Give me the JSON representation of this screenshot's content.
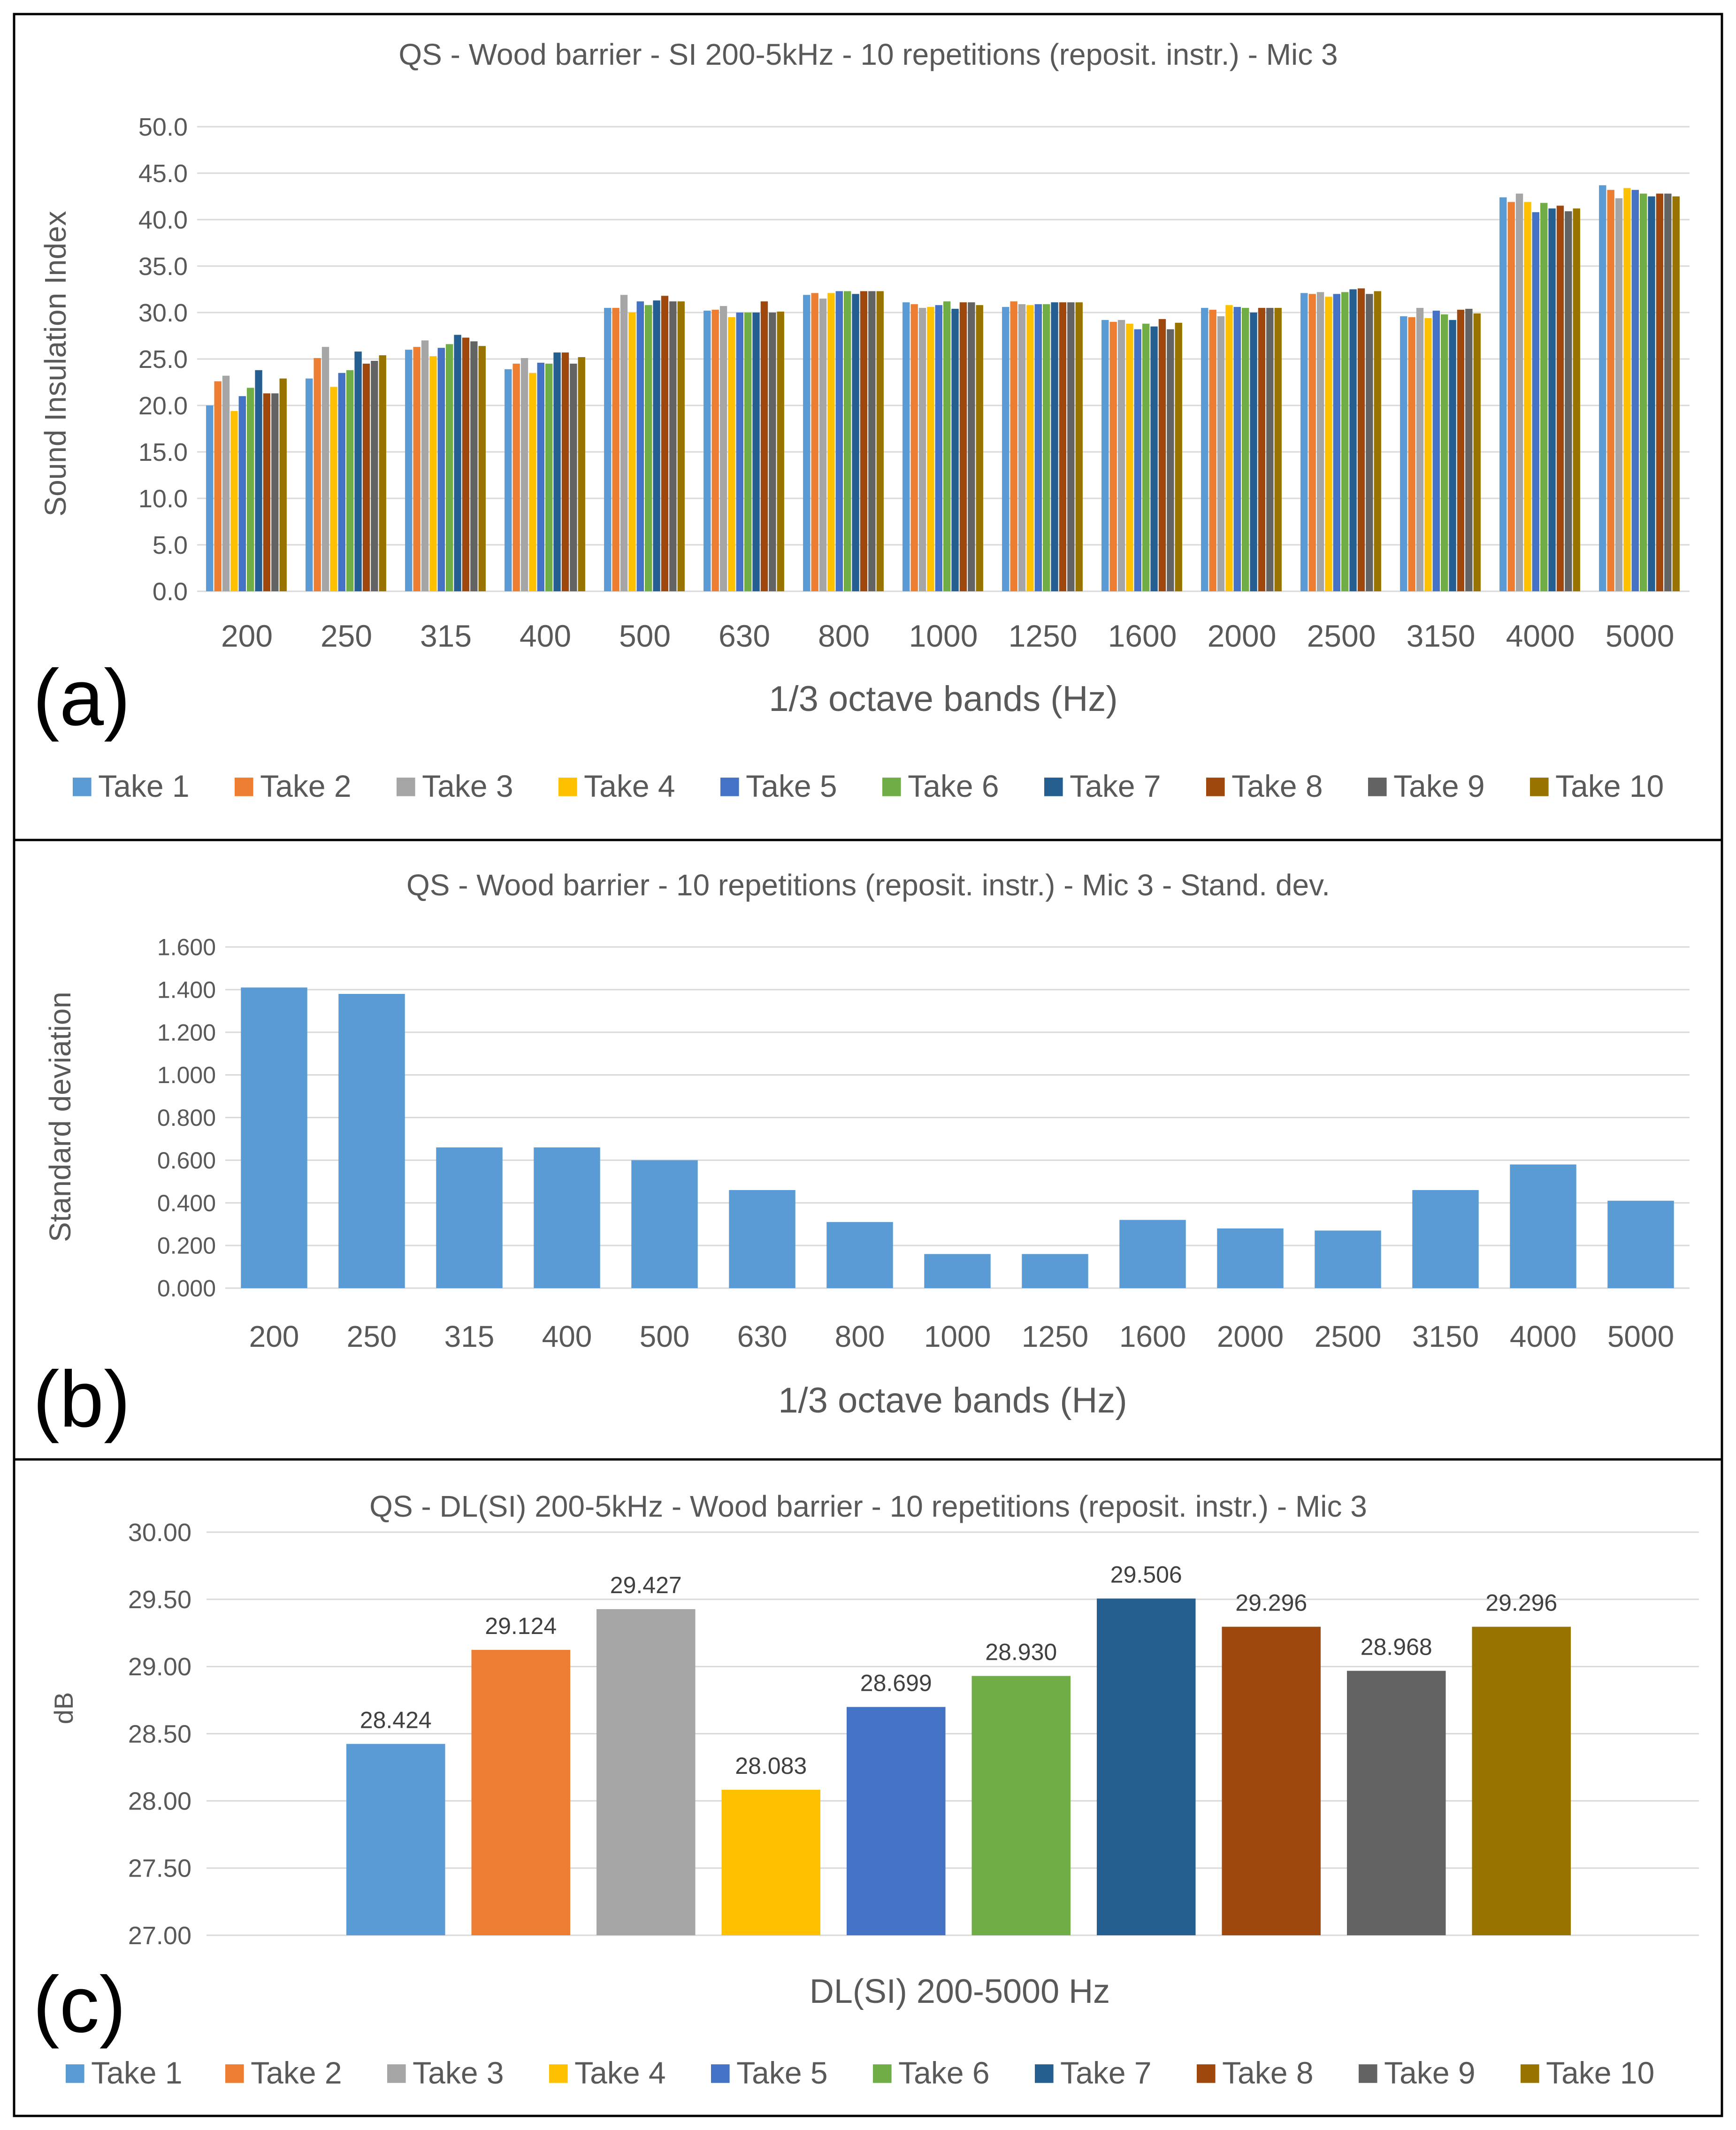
{
  "colors": [
    "#5b9bd5",
    "#ed7d31",
    "#a5a5a5",
    "#ffc000",
    "#4472c4",
    "#70ad47",
    "#255e91",
    "#9e480e",
    "#636363",
    "#997300"
  ],
  "legend_labels": [
    "Take 1",
    "Take 2",
    "Take 3",
    "Take 4",
    "Take 5",
    "Take 6",
    "Take 7",
    "Take 8",
    "Take 9",
    "Take 10"
  ],
  "panels": [
    {
      "letter": "(a)"
    },
    {
      "letter": "(b)"
    },
    {
      "letter": "(c)"
    }
  ],
  "chart_data": [
    {
      "type": "bar",
      "title": "QS - Wood barrier - SI 200-5kHz - 10 repetitions (reposit. instr.) - Mic 3",
      "xlabel": "1/3 octave bands (Hz)",
      "ylabel": "Sound Insulation Index",
      "ylim": [
        0,
        50
      ],
      "yticks": [
        "0.0",
        "5.0",
        "10.0",
        "15.0",
        "20.0",
        "25.0",
        "30.0",
        "35.0",
        "40.0",
        "45.0",
        "50.0"
      ],
      "grid": true,
      "legend": "bottom",
      "categories": [
        "200",
        "250",
        "315",
        "400",
        "500",
        "630",
        "800",
        "1000",
        "1250",
        "1600",
        "2000",
        "2500",
        "3150",
        "4000",
        "5000"
      ],
      "series": [
        {
          "name": "Take 1",
          "values": [
            20.0,
            22.9,
            26.0,
            23.9,
            30.5,
            30.2,
            31.9,
            31.1,
            30.6,
            29.2,
            30.5,
            32.1,
            29.6,
            42.4,
            43.7
          ]
        },
        {
          "name": "Take 2",
          "values": [
            22.6,
            25.1,
            26.3,
            24.5,
            30.5,
            30.3,
            32.1,
            30.9,
            31.2,
            29.0,
            30.3,
            32.0,
            29.5,
            41.9,
            43.2
          ]
        },
        {
          "name": "Take 3",
          "values": [
            23.2,
            26.3,
            27.0,
            25.1,
            31.9,
            30.7,
            31.5,
            30.5,
            30.9,
            29.2,
            29.6,
            32.2,
            30.5,
            42.8,
            42.3
          ]
        },
        {
          "name": "Take 4",
          "values": [
            19.4,
            22.0,
            25.3,
            23.5,
            30.0,
            29.5,
            32.1,
            30.6,
            30.8,
            28.8,
            30.8,
            31.7,
            29.4,
            41.9,
            43.4
          ]
        },
        {
          "name": "Take 5",
          "values": [
            21.0,
            23.5,
            26.2,
            24.6,
            31.2,
            30.0,
            32.3,
            30.8,
            30.9,
            28.2,
            30.6,
            32.0,
            30.2,
            40.8,
            43.2
          ]
        },
        {
          "name": "Take 6",
          "values": [
            21.9,
            23.8,
            26.6,
            24.5,
            30.8,
            30.0,
            32.3,
            31.2,
            30.9,
            28.8,
            30.5,
            32.2,
            29.8,
            41.8,
            42.8
          ]
        },
        {
          "name": "Take 7",
          "values": [
            23.8,
            25.8,
            27.6,
            25.7,
            31.3,
            30.0,
            32.0,
            30.4,
            31.1,
            28.5,
            30.0,
            32.5,
            29.2,
            41.2,
            42.5
          ]
        },
        {
          "name": "Take 8",
          "values": [
            21.3,
            24.5,
            27.3,
            25.7,
            31.8,
            31.2,
            32.3,
            31.1,
            31.1,
            29.3,
            30.5,
            32.6,
            30.3,
            41.5,
            42.8
          ]
        },
        {
          "name": "Take 9",
          "values": [
            21.3,
            24.8,
            26.9,
            24.5,
            31.2,
            30.0,
            32.3,
            31.1,
            31.1,
            28.2,
            30.5,
            32.0,
            30.4,
            40.9,
            42.8
          ]
        },
        {
          "name": "Take 10",
          "values": [
            22.9,
            25.4,
            26.4,
            25.2,
            31.2,
            30.1,
            32.3,
            30.8,
            31.1,
            28.9,
            30.5,
            32.3,
            29.9,
            41.2,
            42.5
          ]
        }
      ]
    },
    {
      "type": "bar",
      "title": "QS - Wood barrier - 10 repetitions (reposit. instr.) - Mic 3 - Stand. dev.",
      "xlabel": "1/3 octave bands (Hz)",
      "ylabel": "Standard deviation",
      "ylim": [
        0,
        1.6
      ],
      "yticks": [
        "0.000",
        "0.200",
        "0.400",
        "0.600",
        "0.800",
        "1.000",
        "1.200",
        "1.400",
        "1.600"
      ],
      "grid": true,
      "legend": "none",
      "categories": [
        "200",
        "250",
        "315",
        "400",
        "500",
        "630",
        "800",
        "1000",
        "1250",
        "1600",
        "2000",
        "2500",
        "3150",
        "4000",
        "5000"
      ],
      "values": [
        1.41,
        1.38,
        0.66,
        0.66,
        0.6,
        0.46,
        0.31,
        0.16,
        0.16,
        0.32,
        0.28,
        0.27,
        0.46,
        0.58,
        0.41
      ]
    },
    {
      "type": "bar",
      "title": "QS - DL(SI) 200-5kHz - Wood barrier - 10 repetitions (reposit. instr.) - Mic 3",
      "xlabel": "DL(SI) 200-5000 Hz",
      "ylabel": "dB",
      "ylim": [
        27.0,
        30.0
      ],
      "yticks": [
        "27.00",
        "27.50",
        "28.00",
        "28.50",
        "29.00",
        "29.50",
        "30.00"
      ],
      "grid": true,
      "legend": "bottom",
      "categories": [
        "Take 1",
        "Take 2",
        "Take 3",
        "Take 4",
        "Take 5",
        "Take 6",
        "Take 7",
        "Take 8",
        "Take 9",
        "Take 10"
      ],
      "values": [
        28.424,
        29.124,
        29.427,
        28.083,
        28.699,
        28.93,
        29.506,
        29.296,
        28.968,
        29.296
      ],
      "data_labels": [
        "28.424",
        "29.124",
        "29.427",
        "28.083",
        "28.699",
        "28.930",
        "29.506",
        "29.296",
        "28.968",
        "29.296"
      ]
    }
  ]
}
